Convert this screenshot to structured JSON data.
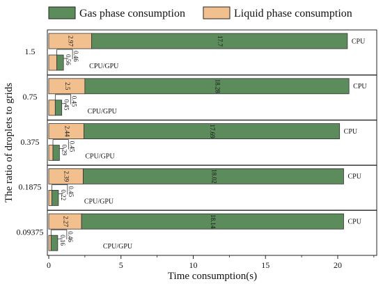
{
  "chart_data": {
    "type": "bar",
    "orientation": "horizontal",
    "stacked": true,
    "xlabel": "Time consumption(s)",
    "ylabel": "The ratio of droplets to grids",
    "xlim": [
      0,
      22.7
    ],
    "xticks": [
      0,
      5,
      10,
      15,
      20
    ],
    "legend": {
      "placement": "top",
      "entries": [
        "Gas phase consumption",
        "Liquid phase consumption"
      ]
    },
    "series_colors": {
      "gas": "#5c8c5c",
      "liquid": "#f2c08f"
    },
    "categories": [
      "1.5",
      "0.75",
      "0.375",
      "0.1875",
      "0.09375"
    ],
    "groups": [
      {
        "category": "1.5",
        "cpu": {
          "label": "CPU",
          "liquid": 2.97,
          "gas": 17.7,
          "liquid_text": "2.97",
          "gas_text": "17.7"
        },
        "gpu": {
          "label": "CPU/GPU",
          "liquid": 0.56,
          "gas": 0.46,
          "liquid_text": "0.56",
          "gas_text": "0.46"
        }
      },
      {
        "category": "0.75",
        "cpu": {
          "label": "CPU",
          "liquid": 2.5,
          "gas": 18.28,
          "liquid_text": "2.5",
          "gas_text": "18.28"
        },
        "gpu": {
          "label": "CPU/GPU",
          "liquid": 0.45,
          "gas": 0.45,
          "liquid_text": "0.45",
          "gas_text": "0.45"
        }
      },
      {
        "category": "0.375",
        "cpu": {
          "label": "CPU",
          "liquid": 2.44,
          "gas": 17.69,
          "liquid_text": "2.44",
          "gas_text": "17.69"
        },
        "gpu": {
          "label": "CPU/GPU",
          "liquid": 0.29,
          "gas": 0.45,
          "liquid_text": "0.29",
          "gas_text": "0.45"
        }
      },
      {
        "category": "0.1875",
        "cpu": {
          "label": "CPU",
          "liquid": 2.39,
          "gas": 18.02,
          "liquid_text": "2.39",
          "gas_text": "18.02"
        },
        "gpu": {
          "label": "CPU/GPU",
          "liquid": 0.22,
          "gas": 0.45,
          "liquid_text": "0.22",
          "gas_text": "0.45"
        }
      },
      {
        "category": "0.09375",
        "cpu": {
          "label": "CPU",
          "liquid": 2.27,
          "gas": 18.14,
          "liquid_text": "2.27",
          "gas_text": "18.14"
        },
        "gpu": {
          "label": "CPU/GPU",
          "liquid": 0.16,
          "gas": 0.46,
          "liquid_text": "0.16",
          "gas_text": "0.46"
        }
      }
    ]
  }
}
